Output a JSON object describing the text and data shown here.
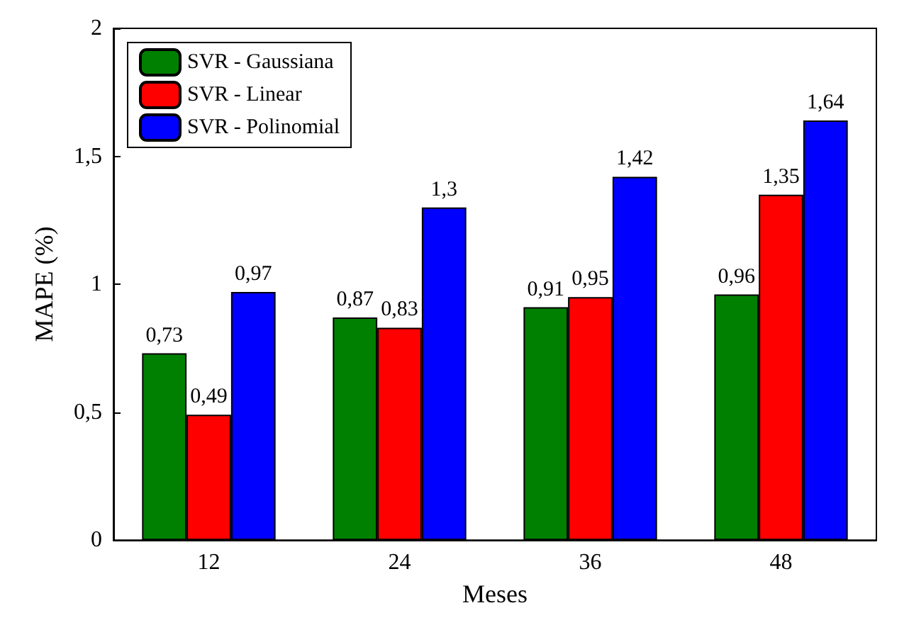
{
  "chart_data": {
    "type": "bar",
    "xlabel": "Meses",
    "ylabel": "MAPE (%)",
    "categories": [
      "12",
      "24",
      "36",
      "48"
    ],
    "series": [
      {
        "name": "SVR - Gaussiana",
        "color": "#008000",
        "values": [
          0.73,
          0.87,
          0.91,
          0.96
        ],
        "value_labels": [
          "0,73",
          "0,87",
          "0,91",
          "0,96"
        ]
      },
      {
        "name": "SVR - Linear",
        "color": "#ff0000",
        "values": [
          0.49,
          0.83,
          0.95,
          1.35
        ],
        "value_labels": [
          "0,49",
          "0,83",
          "0,95",
          "1,35"
        ]
      },
      {
        "name": "SVR - Polinomial",
        "color": "#0000ff",
        "values": [
          0.97,
          1.3,
          1.42,
          1.64
        ],
        "value_labels": [
          "0,97",
          "1,3",
          "1,42",
          "1,64"
        ]
      }
    ],
    "ylim": [
      0,
      2
    ],
    "yticks": [
      0,
      {
        "value": 0.5,
        "label": "0,5"
      },
      1,
      {
        "value": 1.5,
        "label": "1,5"
      },
      2
    ],
    "grid": false,
    "legend": "top left"
  }
}
